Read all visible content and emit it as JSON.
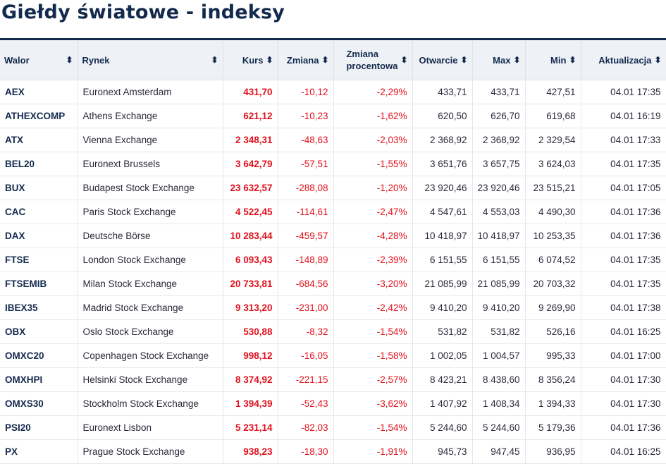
{
  "page": {
    "title": "Giełdy światowe - indeksy"
  },
  "table": {
    "headers": {
      "walor": "Walor",
      "rynek": "Rynek",
      "kurs": "Kurs",
      "zmiana": "Zmiana",
      "zmiana_proc_1": "Zmiana",
      "zmiana_proc_2": "procentowa",
      "otwarcie": "Otwarcie",
      "max": "Max",
      "min": "Min",
      "aktualizacja": "Aktualizacja"
    },
    "sort_icon": "sort-updown-icon",
    "rows": [
      {
        "walor": "AEX",
        "rynek": "Euronext Amsterdam",
        "kurs": "431,70",
        "zmiana": "-10,12",
        "zmiana_proc": "-2,29%",
        "otwarcie": "433,71",
        "max": "433,71",
        "min": "427,51",
        "aktualizacja": "04.01 17:35"
      },
      {
        "walor": "ATHEXCOMP",
        "rynek": "Athens Exchange",
        "kurs": "621,12",
        "zmiana": "-10,23",
        "zmiana_proc": "-1,62%",
        "otwarcie": "620,50",
        "max": "626,70",
        "min": "619,68",
        "aktualizacja": "04.01 16:19"
      },
      {
        "walor": "ATX",
        "rynek": "Vienna Exchange",
        "kurs": "2 348,31",
        "zmiana": "-48,63",
        "zmiana_proc": "-2,03%",
        "otwarcie": "2 368,92",
        "max": "2 368,92",
        "min": "2 329,54",
        "aktualizacja": "04.01 17:33"
      },
      {
        "walor": "BEL20",
        "rynek": "Euronext Brussels",
        "kurs": "3 642,79",
        "zmiana": "-57,51",
        "zmiana_proc": "-1,55%",
        "otwarcie": "3 651,76",
        "max": "3 657,75",
        "min": "3 624,03",
        "aktualizacja": "04.01 17:35"
      },
      {
        "walor": "BUX",
        "rynek": "Budapest Stock Exchange",
        "kurs": "23 632,57",
        "zmiana": "-288,08",
        "zmiana_proc": "-1,20%",
        "otwarcie": "23 920,46",
        "max": "23 920,46",
        "min": "23 515,21",
        "aktualizacja": "04.01 17:05"
      },
      {
        "walor": "CAC",
        "rynek": "Paris Stock Exchange",
        "kurs": "4 522,45",
        "zmiana": "-114,61",
        "zmiana_proc": "-2,47%",
        "otwarcie": "4 547,61",
        "max": "4 553,03",
        "min": "4 490,30",
        "aktualizacja": "04.01 17:36"
      },
      {
        "walor": "DAX",
        "rynek": "Deutsche Börse",
        "kurs": "10 283,44",
        "zmiana": "-459,57",
        "zmiana_proc": "-4,28%",
        "otwarcie": "10 418,97",
        "max": "10 418,97",
        "min": "10 253,35",
        "aktualizacja": "04.01 17:36"
      },
      {
        "walor": "FTSE",
        "rynek": "London Stock Exchange",
        "kurs": "6 093,43",
        "zmiana": "-148,89",
        "zmiana_proc": "-2,39%",
        "otwarcie": "6 151,55",
        "max": "6 151,55",
        "min": "6 074,52",
        "aktualizacja": "04.01 17:35"
      },
      {
        "walor": "FTSEMIB",
        "rynek": "Milan Stock Exchange",
        "kurs": "20 733,81",
        "zmiana": "-684,56",
        "zmiana_proc": "-3,20%",
        "otwarcie": "21 085,99",
        "max": "21 085,99",
        "min": "20 703,32",
        "aktualizacja": "04.01 17:35"
      },
      {
        "walor": "IBEX35",
        "rynek": "Madrid Stock Exchange",
        "kurs": "9 313,20",
        "zmiana": "-231,00",
        "zmiana_proc": "-2,42%",
        "otwarcie": "9 410,20",
        "max": "9 410,20",
        "min": "9 269,90",
        "aktualizacja": "04.01 17:38"
      },
      {
        "walor": "OBX",
        "rynek": "Oslo Stock Exchange",
        "kurs": "530,88",
        "zmiana": "-8,32",
        "zmiana_proc": "-1,54%",
        "otwarcie": "531,82",
        "max": "531,82",
        "min": "526,16",
        "aktualizacja": "04.01 16:25"
      },
      {
        "walor": "OMXC20",
        "rynek": "Copenhagen Stock Exchange",
        "kurs": "998,12",
        "zmiana": "-16,05",
        "zmiana_proc": "-1,58%",
        "otwarcie": "1 002,05",
        "max": "1 004,57",
        "min": "995,33",
        "aktualizacja": "04.01 17:00"
      },
      {
        "walor": "OMXHPI",
        "rynek": "Helsinki Stock Exchange",
        "kurs": "8 374,92",
        "zmiana": "-221,15",
        "zmiana_proc": "-2,57%",
        "otwarcie": "8 423,21",
        "max": "8 438,60",
        "min": "8 356,24",
        "aktualizacja": "04.01 17:30"
      },
      {
        "walor": "OMXS30",
        "rynek": "Stockholm Stock Exchange",
        "kurs": "1 394,39",
        "zmiana": "-52,43",
        "zmiana_proc": "-3,62%",
        "otwarcie": "1 407,92",
        "max": "1 408,34",
        "min": "1 394,33",
        "aktualizacja": "04.01 17:30"
      },
      {
        "walor": "PSI20",
        "rynek": "Euronext Lisbon",
        "kurs": "5 231,14",
        "zmiana": "-82,03",
        "zmiana_proc": "-1,54%",
        "otwarcie": "5 244,60",
        "max": "5 244,60",
        "min": "5 179,36",
        "aktualizacja": "04.01 17:36"
      },
      {
        "walor": "PX",
        "rynek": "Prague Stock Exchange",
        "kurs": "938,23",
        "zmiana": "-18,30",
        "zmiana_proc": "-1,91%",
        "otwarcie": "945,73",
        "max": "947,45",
        "min": "936,95",
        "aktualizacja": "04.01 16:25"
      }
    ]
  }
}
